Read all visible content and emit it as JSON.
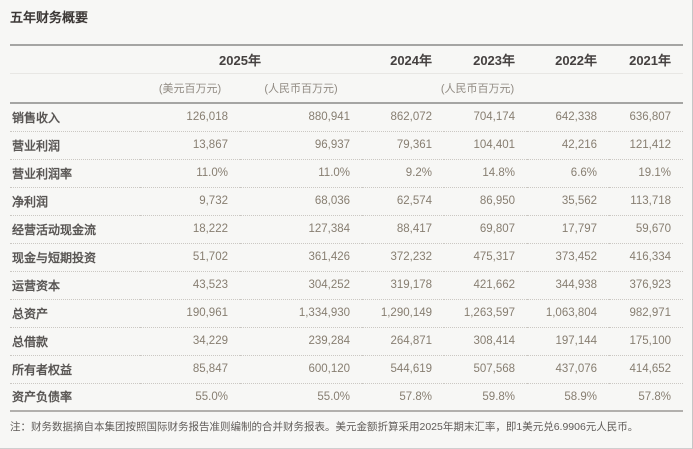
{
  "title": "五年财务概要",
  "table": {
    "year_headers": [
      "2025年",
      "2024年",
      "2023年",
      "2022年",
      "2021年"
    ],
    "unit_usd": "(美元百万元)",
    "unit_rmb": "(人民币百万元)",
    "rows": [
      {
        "label": "销售收入",
        "values": [
          "126,018",
          "880,941",
          "862,072",
          "704,174",
          "642,338",
          "636,807"
        ]
      },
      {
        "label": "营业利润",
        "values": [
          "13,867",
          "96,937",
          "79,361",
          "104,401",
          "42,216",
          "121,412"
        ]
      },
      {
        "label": "营业利润率",
        "values": [
          "11.0%",
          "11.0%",
          "9.2%",
          "14.8%",
          "6.6%",
          "19.1%"
        ]
      },
      {
        "label": "净利润",
        "values": [
          "9,732",
          "68,036",
          "62,574",
          "86,950",
          "35,562",
          "113,718"
        ]
      },
      {
        "label": "经营活动现金流",
        "values": [
          "18,222",
          "127,384",
          "88,417",
          "69,807",
          "17,797",
          "59,670"
        ]
      },
      {
        "label": "现金与短期投资",
        "values": [
          "51,702",
          "361,426",
          "372,232",
          "475,317",
          "373,452",
          "416,334"
        ]
      },
      {
        "label": "运营资本",
        "values": [
          "43,523",
          "304,252",
          "319,178",
          "421,662",
          "344,938",
          "376,923"
        ]
      },
      {
        "label": "总资产",
        "values": [
          "190,961",
          "1,334,930",
          "1,290,149",
          "1,263,597",
          "1,063,804",
          "982,971"
        ]
      },
      {
        "label": "总借款",
        "values": [
          "34,229",
          "239,284",
          "264,871",
          "308,414",
          "197,144",
          "175,100"
        ]
      },
      {
        "label": "所有者权益",
        "values": [
          "85,847",
          "600,120",
          "544,619",
          "507,568",
          "437,076",
          "414,652"
        ]
      },
      {
        "label": "资产负债率",
        "values": [
          "55.0%",
          "55.0%",
          "57.8%",
          "59.8%",
          "58.9%",
          "57.8%"
        ]
      }
    ]
  },
  "footnote": "注：财务数据摘自本集团按照国际财务报告准则编制的合并财务报表。美元金额折算采用2025年期末汇率，即1美元兑6.9906元人民币。"
}
